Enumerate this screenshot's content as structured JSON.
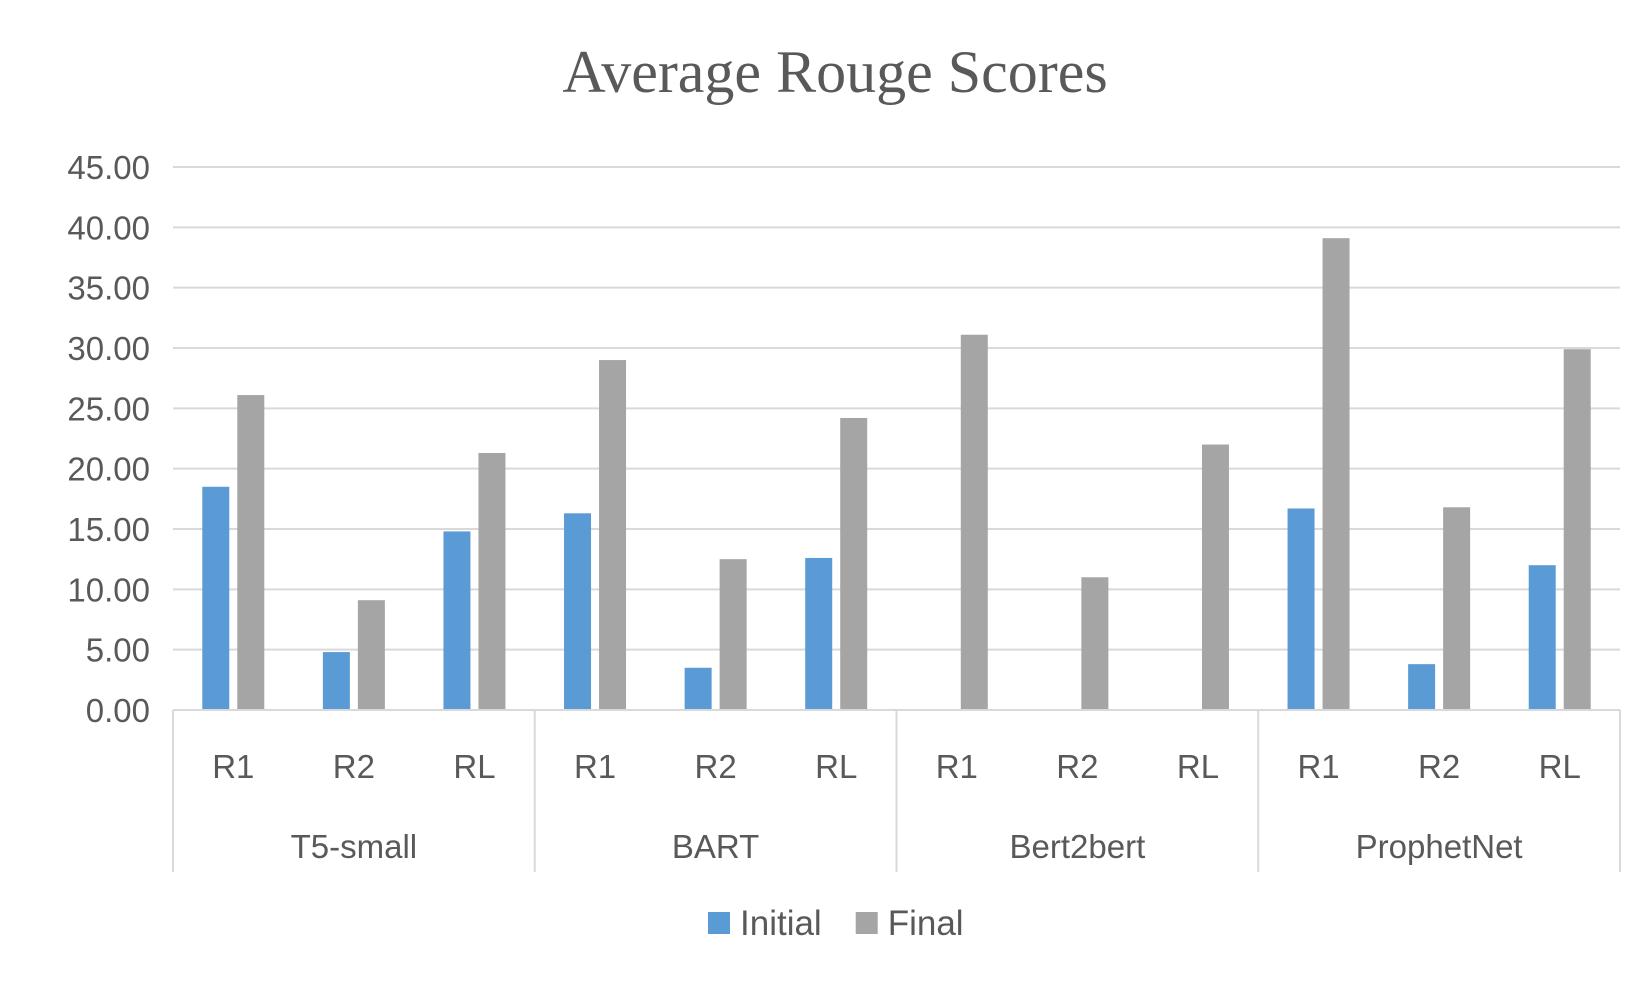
{
  "chart_data": {
    "type": "bar",
    "title": "Average Rouge Scores",
    "xlabel": "",
    "ylabel": "",
    "ylim": [
      0,
      45
    ],
    "yticks": [
      "0.00",
      "5.00",
      "10.00",
      "15.00",
      "20.00",
      "25.00",
      "30.00",
      "35.00",
      "40.00",
      "45.00"
    ],
    "ytick_values": [
      0,
      5,
      10,
      15,
      20,
      25,
      30,
      35,
      40,
      45
    ],
    "grid": true,
    "legend_position": "bottom",
    "groups": [
      "T5-small",
      "BART",
      "Bert2bert",
      "ProphetNet"
    ],
    "categories": [
      "R1",
      "R2",
      "RL"
    ],
    "series": [
      {
        "name": "Initial",
        "color": "#5b9bd5",
        "values": [
          [
            18.5,
            4.8,
            14.8
          ],
          [
            16.3,
            3.5,
            12.6
          ],
          [
            0,
            0,
            0
          ],
          [
            16.7,
            3.8,
            12.0
          ]
        ]
      },
      {
        "name": "Final",
        "color": "#a5a5a5",
        "values": [
          [
            26.1,
            9.1,
            21.3
          ],
          [
            29.0,
            12.5,
            24.2
          ],
          [
            31.1,
            11.0,
            22.0
          ],
          [
            39.1,
            16.8,
            29.9
          ]
        ]
      }
    ]
  }
}
